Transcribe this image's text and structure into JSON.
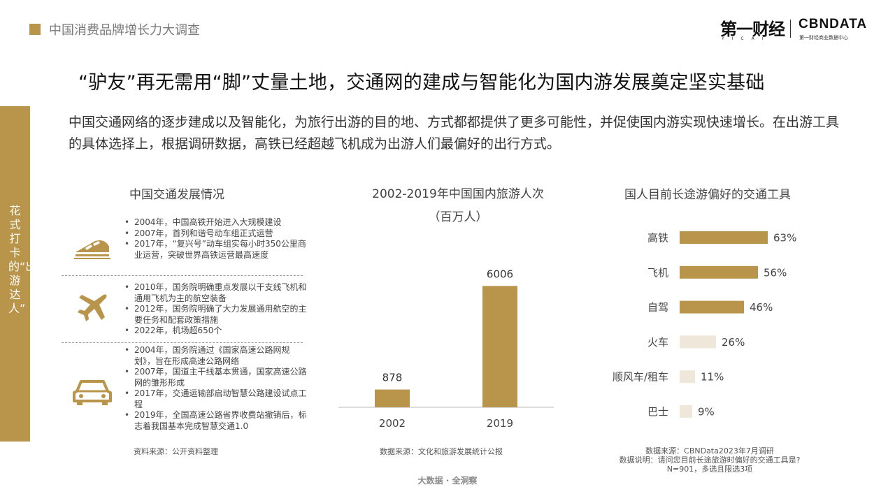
{
  "header": {
    "title": "中国消费品牌增长力大调查",
    "logo_yicai": "第一财经",
    "logo_yicai_sub": "YICAI",
    "logo_cbn": "CBNDATA",
    "logo_cbn_sub": "第一财经商业数据中心"
  },
  "headline": "“驴友”再无需用“脚”丈量土地，交通网的建成与智能化为国内游发展奠定坚实基础",
  "intro": "中国交通网络的逐步建成以及智能化，为旅行出游的目的地、方式都都提供了更多可能性，并促使国内游实现快速增长。在出游工具的具体选择上，根据调研数据，高铁已经超越飞机成为出游人们最偏好的出行方式。",
  "side_tab": "花式打卡的“出游达人”",
  "left_panel": {
    "title": "中国交通发展情况",
    "groups": [
      {
        "icon": "high-speed-train-icon",
        "items": [
          "2004年，中国高铁开始进入大规模建设",
          "2007年，首列和谐号动车组正式运营",
          "2017年，“复兴号”动车组实每小时350公里商业运营，突破世界高铁运营最高速度"
        ]
      },
      {
        "icon": "airplane-icon",
        "items": [
          "2010年，国务院明确重点发展以干支线飞机和通用飞机为主的航空装备",
          "2012年，国务院明确了大力发展通用航空的主要任务和配套政策措施",
          "2022年，机场超650个"
        ]
      },
      {
        "icon": "car-icon",
        "items": [
          "2004年，国务院通过《国家高速公路网规划》，旨在形成高速公路网络",
          "2007年，国道主干线基本贯通，国家高速公路网的雏形形成",
          "2017年，交通运输部启动智慧公路建设试点工程",
          "2019年，全国高速公路省界收费站撤销后，标志着我国基本完成智慧交通1.0"
        ]
      }
    ],
    "source": "资料来源：公开资料整理"
  },
  "middle_chart": {
    "title_line1": "2002-2019年中国国内旅游人次",
    "title_line2": "（百万人）",
    "source": "数据来源：文化和旅游发展统计公报"
  },
  "right_chart": {
    "title": "国人目前长途游偏好的交通工具",
    "source": "数据来源：CBNData2023年7月调研",
    "note": "数据说明：请问您目前长途旅游时偏好的交通工具是?",
    "sample": "N=901，多选且限选3项"
  },
  "footer": "大数据 · 全洞察",
  "colors": {
    "accent": "#B8954A",
    "bar_light": "#EFE7DA",
    "text": "#333333"
  },
  "chart_data": [
    {
      "type": "bar",
      "orientation": "vertical",
      "title": "2002-2019年中国国内旅游人次（百万人）",
      "categories": [
        "2002",
        "2019"
      ],
      "values": [
        878,
        6006
      ],
      "value_labels": [
        "878",
        "6006"
      ],
      "unit": "百万人",
      "ylim": [
        0,
        6500
      ],
      "grid": false,
      "color": "#B8954A"
    },
    {
      "type": "bar",
      "orientation": "horizontal",
      "title": "国人目前长途游偏好的交通工具",
      "categories": [
        "高铁",
        "飞机",
        "自驾",
        "火车",
        "顺风车/租车",
        "巴士"
      ],
      "values": [
        63,
        56,
        46,
        26,
        11,
        9
      ],
      "value_labels": [
        "63%",
        "56%",
        "46%",
        "26%",
        "11%",
        "9%"
      ],
      "unit": "%",
      "xlim": [
        0,
        100
      ],
      "highlight_top": 3,
      "colors": [
        "#B8954A",
        "#B8954A",
        "#B8954A",
        "#EFE7DA",
        "#EFE7DA",
        "#EFE7DA"
      ],
      "grid": false
    }
  ]
}
